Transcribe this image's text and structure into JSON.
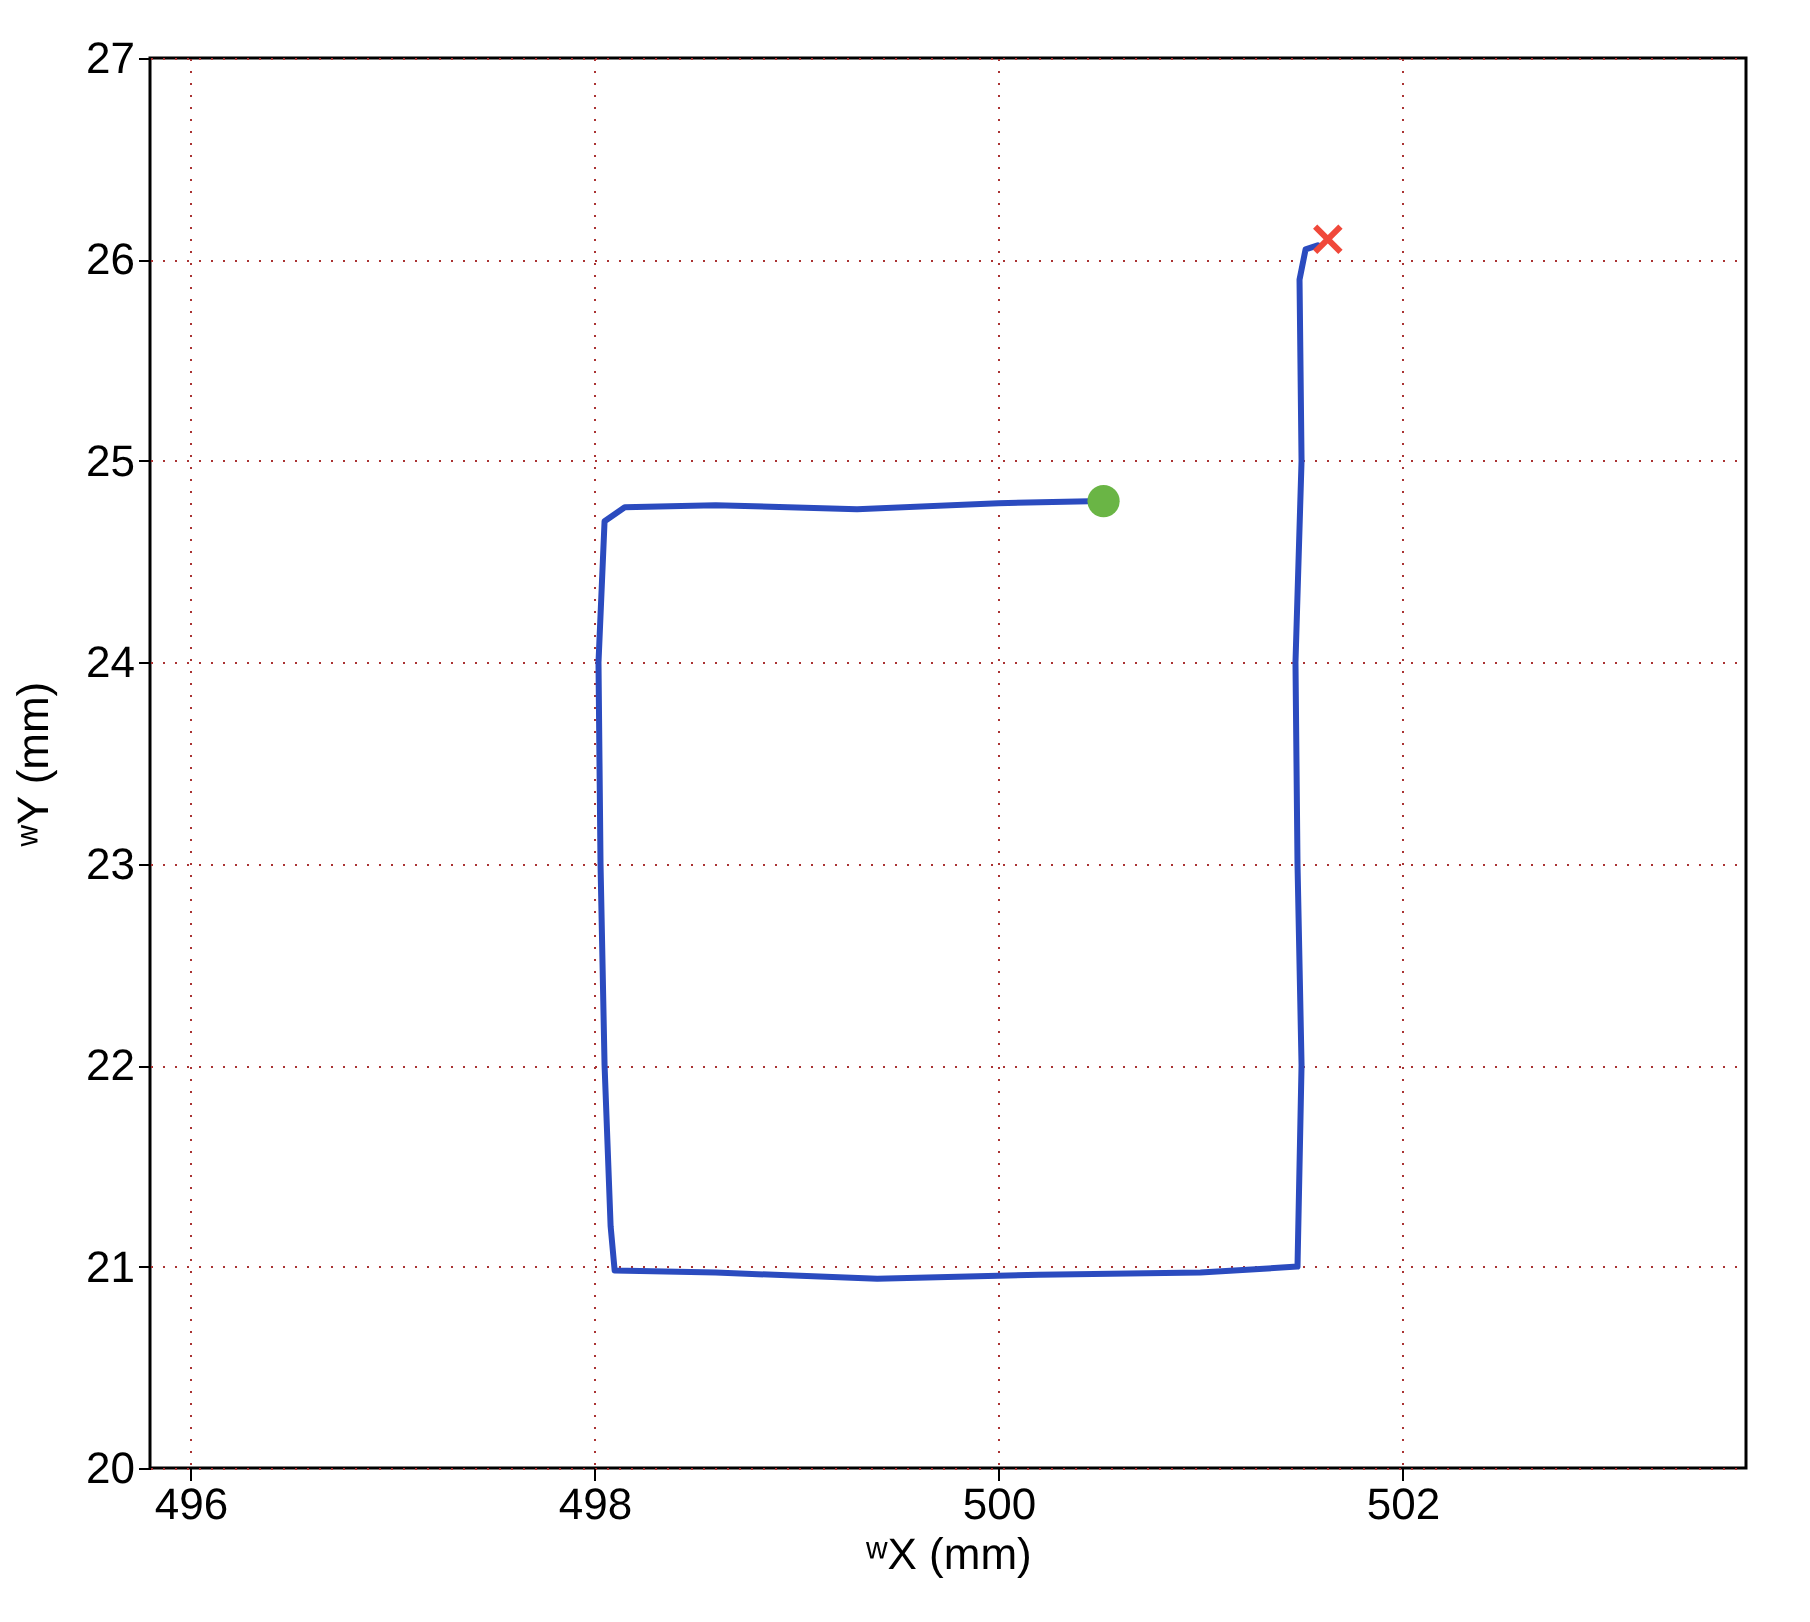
{
  "chart_data": {
    "type": "line",
    "xlabel": "ʷX (mm)",
    "ylabel": "ʷY (mm)",
    "xlim": [
      495.8,
      503.7
    ],
    "ylim": [
      20,
      27
    ],
    "xticks": [
      496,
      498,
      500,
      502
    ],
    "yticks": [
      20,
      21,
      22,
      23,
      24,
      25,
      26,
      27
    ],
    "grid": true,
    "line_style": "solid",
    "series": [
      {
        "type": "line",
        "color": "#2b4bbf",
        "x": [
          500.45,
          500.0,
          499.3,
          498.6,
          498.15,
          498.05,
          498.02,
          498.03,
          498.05,
          498.08,
          498.1,
          498.6,
          499.4,
          500.2,
          501.0,
          501.48,
          501.5,
          501.48,
          501.47,
          501.5,
          501.49,
          501.52,
          501.58
        ],
        "values": [
          24.8,
          24.79,
          24.76,
          24.78,
          24.77,
          24.7,
          24.0,
          23.0,
          22.0,
          21.2,
          20.98,
          20.97,
          20.94,
          20.96,
          20.97,
          21.0,
          22.0,
          23.0,
          24.0,
          25.0,
          25.9,
          26.05,
          26.07
        ]
      },
      {
        "type": "scatter",
        "marker": "circle",
        "color": "#6ab545",
        "x": [
          500.52
        ],
        "values": [
          24.8
        ]
      },
      {
        "type": "scatter",
        "marker": "cross",
        "color": "#f0483a",
        "x": [
          501.63
        ],
        "values": [
          26.1
        ]
      }
    ]
  }
}
